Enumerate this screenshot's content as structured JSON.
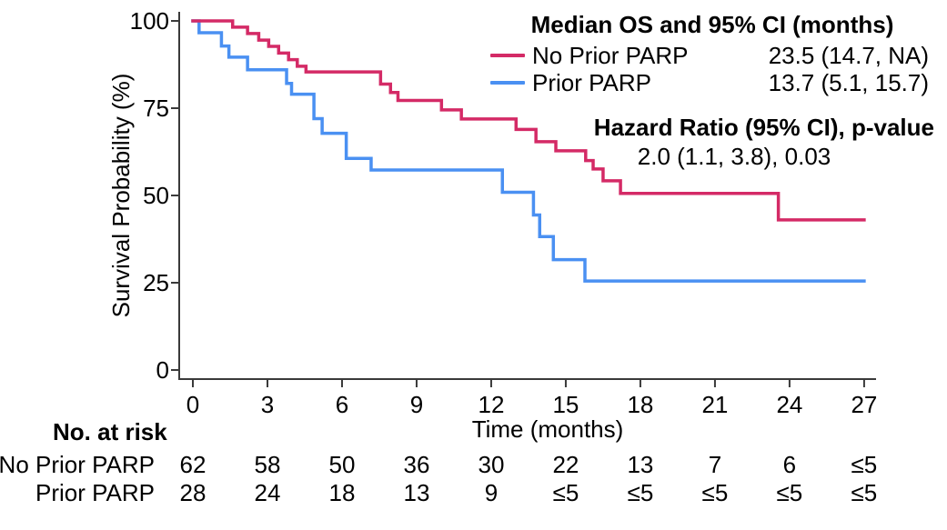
{
  "colors": {
    "no_prior_parp": "#D42A66",
    "prior_parp": "#4A90F2",
    "axis": "#3a3a3a",
    "text": "#000000"
  },
  "legend": {
    "title": "Median OS and 95% CI (months)",
    "rows": [
      {
        "label": "No Prior PARP",
        "value": "23.5 (14.7, NA)",
        "color": "#D42A66",
        "swatch": "line"
      },
      {
        "label": "Prior PARP",
        "value": "13.7 (5.1, 15.7)",
        "color": "#4A90F2",
        "swatch": "line"
      }
    ]
  },
  "hazard": {
    "title": "Hazard Ratio (95% CI), p-value",
    "value": "2.0 (1.1, 3.8), 0.03"
  },
  "axes": {
    "y_label": "Survival Probability (%)",
    "x_label": "Time (months)",
    "y_ticks": [
      0,
      25,
      50,
      75,
      100
    ],
    "x_ticks": [
      0,
      3,
      6,
      9,
      12,
      15,
      18,
      21,
      24,
      27
    ]
  },
  "risk_table": {
    "header": "No. at risk",
    "times": [
      0,
      3,
      6,
      9,
      12,
      15,
      18,
      21,
      24,
      27
    ],
    "rows": [
      {
        "label": "No Prior PARP",
        "values": [
          "62",
          "58",
          "50",
          "36",
          "30",
          "22",
          "13",
          "7",
          "6",
          "≤5"
        ]
      },
      {
        "label": "Prior PARP",
        "values": [
          "28",
          "24",
          "18",
          "13",
          "9",
          "≤5",
          "≤5",
          "≤5",
          "≤5",
          "≤5"
        ]
      }
    ]
  },
  "chart_data": {
    "type": "line",
    "subtype": "kaplan-meier-step",
    "title": "",
    "xlabel": "Time (months)",
    "ylabel": "Survival Probability (%)",
    "xlim": [
      0,
      27
    ],
    "ylim": [
      0,
      100
    ],
    "x_ticks": [
      0,
      3,
      6,
      9,
      12,
      15,
      18,
      21,
      24,
      27
    ],
    "y_ticks": [
      0,
      25,
      50,
      75,
      100
    ],
    "grid": false,
    "legend_position": "top-right",
    "annotations": [
      "Median OS and 95% CI (months): No Prior PARP 23.5 (14.7, NA); Prior PARP 13.7 (5.1, 15.7)",
      "Hazard Ratio (95% CI), p-value: 2.0 (1.1, 3.8), 0.03"
    ],
    "series": [
      {
        "name": "No Prior PARP",
        "color": "#D42A66",
        "median_os": "23.5 (14.7, NA)",
        "steps": [
          [
            0,
            100
          ],
          [
            1.6,
            98.2
          ],
          [
            2.2,
            96.4
          ],
          [
            2.65,
            94.5
          ],
          [
            3.05,
            92.7
          ],
          [
            3.45,
            90.8
          ],
          [
            3.85,
            88.9
          ],
          [
            4.2,
            87.0
          ],
          [
            4.55,
            85.4
          ],
          [
            7.55,
            81.9
          ],
          [
            7.95,
            79.5
          ],
          [
            8.25,
            77.2
          ],
          [
            10.0,
            74.5
          ],
          [
            10.8,
            71.9
          ],
          [
            13.0,
            68.9
          ],
          [
            13.8,
            65.4
          ],
          [
            14.6,
            62.8
          ],
          [
            15.8,
            60.0
          ],
          [
            16.1,
            57.6
          ],
          [
            16.5,
            54.2
          ],
          [
            17.2,
            50.6
          ],
          [
            23.55,
            43.0
          ]
        ]
      },
      {
        "name": "Prior PARP",
        "color": "#4A90F2",
        "median_os": "13.7 (5.1, 15.7)",
        "steps": [
          [
            0,
            100
          ],
          [
            0.25,
            96.6
          ],
          [
            1.15,
            92.8
          ],
          [
            1.45,
            89.6
          ],
          [
            2.2,
            86.0
          ],
          [
            3.77,
            82.1
          ],
          [
            3.97,
            79.0
          ],
          [
            4.87,
            72.0
          ],
          [
            5.2,
            67.8
          ],
          [
            6.17,
            60.6
          ],
          [
            7.17,
            57.3
          ],
          [
            12.45,
            50.9
          ],
          [
            13.7,
            44.4
          ],
          [
            13.95,
            38.2
          ],
          [
            14.5,
            31.6
          ],
          [
            15.77,
            25.5
          ]
        ]
      }
    ]
  }
}
